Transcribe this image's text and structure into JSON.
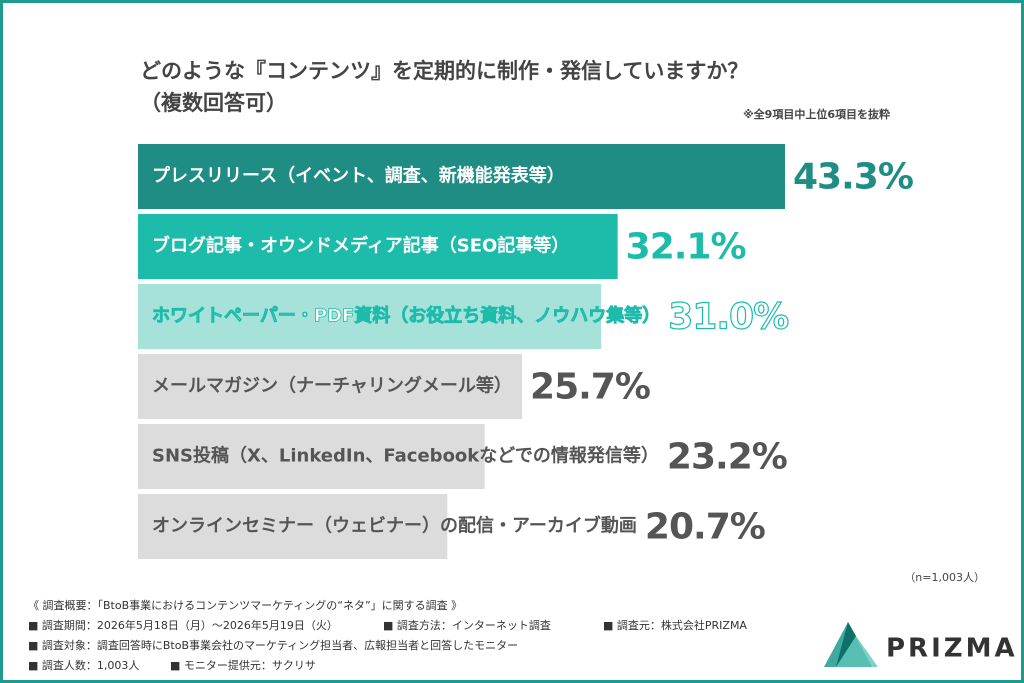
{
  "chart_data": {
    "type": "bar",
    "title": "どのような『コンテンツ』を定期的に制作・発信していますか？",
    "subtitle": "（複数回答可）",
    "note": "※全9項目中上位6項目を抜粋",
    "categories": [
      "プレスリリース（イベント、調査、新機能発表等）",
      "ブログ記事・オウンドメディア記事（SEO記事等）",
      "ホワイトペーパー・PDF資料（お役立ち資料、ノウハウ集等）",
      "メールマガジン（ナーチャリングメール等）",
      "SNS投稿（X、LinkedIn、Facebookなどでの情報発信等）",
      "オンラインセミナー（ウェビナー）の配信・アーカイブ動画"
    ],
    "values": [
      43.3,
      32.1,
      31.0,
      25.7,
      23.2,
      20.7
    ],
    "value_labels": [
      "43.3%",
      "32.1%",
      "31.0%",
      "25.7%",
      "23.2%",
      "20.7%"
    ],
    "colors": [
      "#1f8d84",
      "#1dbcaa",
      "#a6e2da",
      "#dcdcdc",
      "#dcdcdc",
      "#dcdcdc"
    ],
    "label_colors": [
      "#ffffff",
      "#ffffff",
      "#ffffff",
      "#555555",
      "#555555",
      "#555555"
    ],
    "value_colors": [
      "#1f8d84",
      "#1dbcaa",
      "#ffffff",
      "#555555",
      "#555555",
      "#555555"
    ],
    "sample_size": "（n=1,003人）",
    "footer": [
      "《 調査概要：「BtoB事業におけるコンテンツマーケティングの“ネタ”」に関する調査 》",
      "■ 調査期間：2026年5月18日（月）〜2026年5月19日（火）",
      "■ 調査方法：インターネット調査",
      "■ 調査元：株式会社PRIZMA",
      "■ 調査対象：調査回答時にBtoB事業会社のマーケティング担当者、広報担当者と回答したモニター",
      "■ 調査人数：1,003人",
      "■ モニター提供元：サクリサ"
    ],
    "logo": "PRIZMA"
  }
}
